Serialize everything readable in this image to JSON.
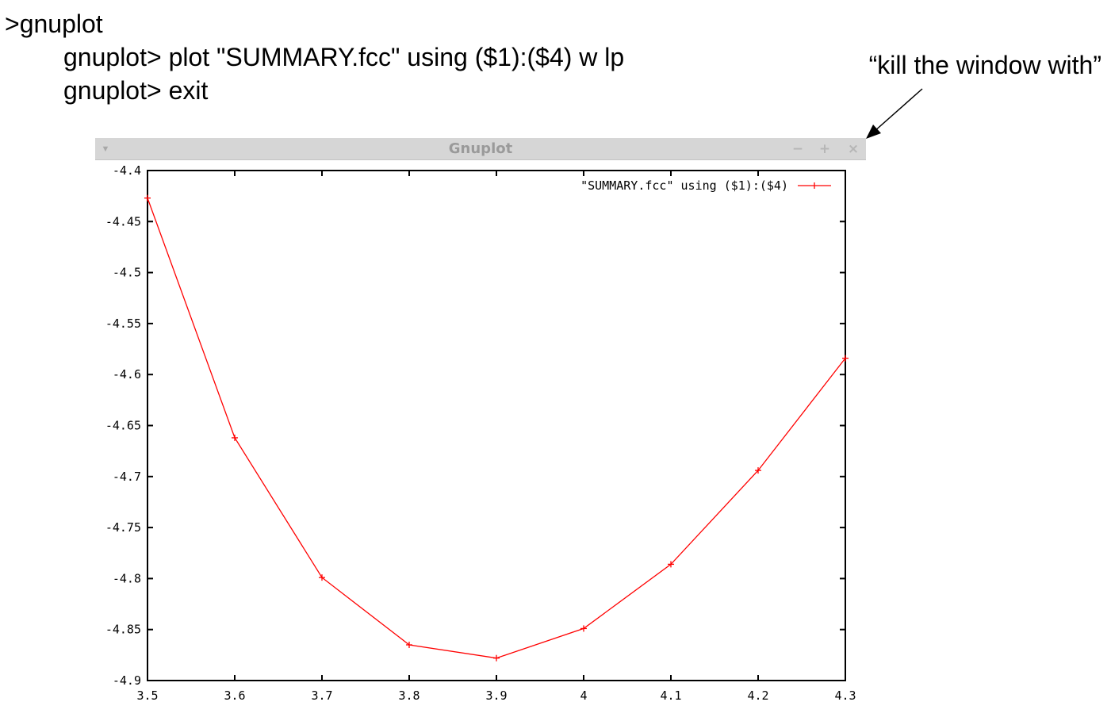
{
  "terminal": {
    "lines": [
      ">gnuplot",
      "gnuplot> plot \"SUMMARY.fcc\" using ($1):($4) w lp",
      "gnuplot> exit"
    ]
  },
  "annotation": {
    "text": "“kill the window with”"
  },
  "window": {
    "title": "Gnuplot",
    "buttons": {
      "minimize": "−",
      "maximize": "+",
      "close": "×"
    },
    "menu_icon": "chevron-down-icon"
  },
  "colors": {
    "series": "#ff0000",
    "titlebar": "#d6d6d6",
    "titlebar_text": "#9a9a9a"
  },
  "chart_data": {
    "type": "line",
    "title": "",
    "xlabel": "",
    "ylabel": "",
    "xlim": [
      3.5,
      4.3
    ],
    "ylim": [
      -4.9,
      -4.4
    ],
    "xticks": [
      3.5,
      3.6,
      3.7,
      3.8,
      3.9,
      4.0,
      4.1,
      4.2,
      4.3
    ],
    "xtick_labels": [
      "3.5",
      "3.6",
      "3.7",
      "3.8",
      "3.9",
      "4",
      "4.1",
      "4.2",
      "4.3"
    ],
    "yticks": [
      -4.4,
      -4.45,
      -4.5,
      -4.55,
      -4.6,
      -4.65,
      -4.7,
      -4.75,
      -4.8,
      -4.85,
      -4.9
    ],
    "ytick_labels": [
      "-4.4",
      "-4.45",
      "-4.5",
      "-4.55",
      "-4.6",
      "-4.65",
      "-4.7",
      "-4.75",
      "-4.8",
      "-4.85",
      "-4.9"
    ],
    "grid": false,
    "legend_position": "top-right",
    "series": [
      {
        "name": "\"SUMMARY.fcc\" using ($1):($4)",
        "style": "linespoints",
        "color": "#ff0000",
        "x": [
          3.5,
          3.6,
          3.7,
          3.8,
          3.9,
          4.0,
          4.1,
          4.2,
          4.3
        ],
        "y": [
          -4.427,
          -4.662,
          -4.799,
          -4.865,
          -4.878,
          -4.849,
          -4.786,
          -4.694,
          -4.584
        ]
      }
    ]
  }
}
